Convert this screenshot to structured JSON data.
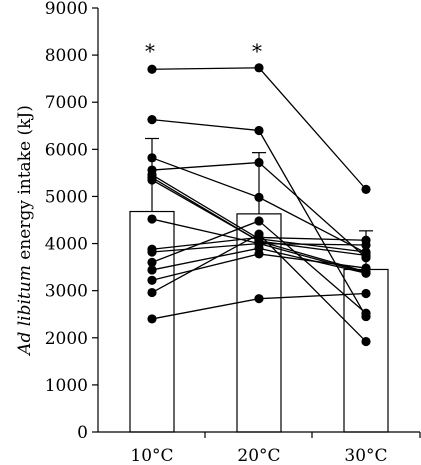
{
  "chart_data": {
    "type": "bar",
    "ylabel_italic": "Ad libitum",
    "ylabel_rest": " energy intake (kJ)",
    "categories": [
      "10°C",
      "20°C",
      "30°C"
    ],
    "ylim": [
      0,
      9000
    ],
    "yticks": [
      "0",
      "1000",
      "2000",
      "3000",
      "4000",
      "5000",
      "6000",
      "7000",
      "8000",
      "9000"
    ],
    "bars": [
      {
        "category": "10°C",
        "mean": 4680,
        "error": 1550
      },
      {
        "category": "20°C",
        "mean": 4630,
        "error": 1300
      },
      {
        "category": "30°C",
        "mean": 3450,
        "error": 820
      }
    ],
    "significance": [
      "*",
      "*",
      ""
    ],
    "individuals": [
      [
        7700,
        7730,
        5150
      ],
      [
        6630,
        6400,
        2450
      ],
      [
        5820,
        4980,
        3800
      ],
      [
        5560,
        5720,
        3700
      ],
      [
        5460,
        4100,
        3820
      ],
      [
        5400,
        4050,
        3750
      ],
      [
        5350,
        4050,
        3400
      ],
      [
        4520,
        4000,
        3380
      ],
      [
        3880,
        4130,
        4070
      ],
      [
        3820,
        4000,
        3970
      ],
      [
        3600,
        4480,
        2520
      ],
      [
        3440,
        3900,
        3370
      ],
      [
        3220,
        3780,
        3480
      ],
      [
        2960,
        4200,
        1920
      ],
      [
        2400,
        2830,
        2940
      ]
    ],
    "grid": false,
    "legend": "none"
  }
}
